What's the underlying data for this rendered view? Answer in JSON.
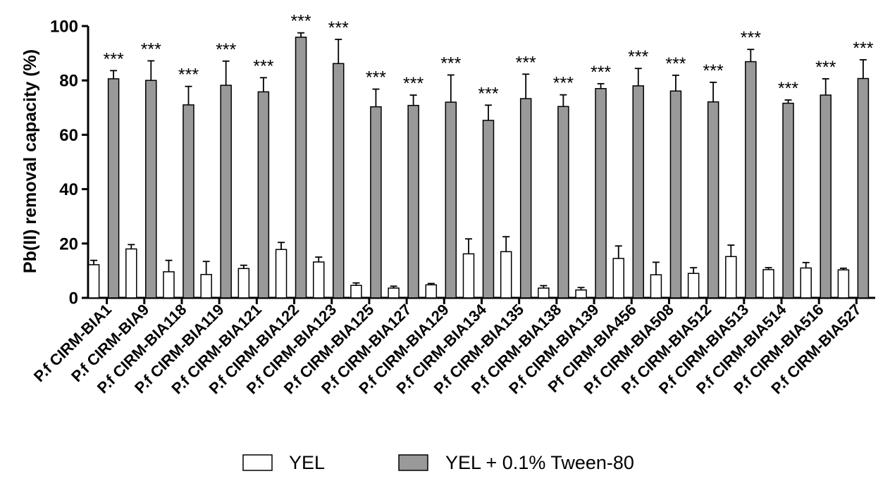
{
  "chart_data": {
    "type": "bar",
    "title": "",
    "xlabel": "",
    "ylabel": "Pb(II) removal capacity (%)",
    "ylim": [
      0,
      100
    ],
    "yticks": [
      "0",
      "20",
      "40",
      "60",
      "80",
      "100"
    ],
    "grid": false,
    "legend_position": "bottom",
    "categories": [
      "P.f CIRM-BIA1",
      "P.f CIRM-BIA9",
      "P.f CIRM-BIA118",
      "P.f CIRM-BIA119",
      "P.f CIRM-BIA121",
      "P.f CIRM-BIA122",
      "P.f CIRM-BIA123",
      "P.f CIRM-BIA125",
      "P.f CIRM-BIA127",
      "P.f CIRM-BIA129",
      "P.f CIRM-BIA134",
      "P.f CIRM-BIA135",
      "P.f CIRM-BIA138",
      "P.f CIRM-BIA139",
      "Pf CIRM-BIA456",
      "P.f CIRM-BIA508",
      "P.f CIRM-BIA512",
      "P.f CIRM-BIA513",
      "P.f CIRM-BIA514",
      "P.f CIRM-BIA516",
      "P.f CIRM-BIA527"
    ],
    "series": [
      {
        "name": "YEL",
        "color": "#ffffff",
        "values": [
          12.2,
          18.0,
          9.6,
          8.6,
          10.8,
          17.8,
          13.2,
          4.6,
          3.6,
          4.8,
          16.2,
          17.0,
          3.6,
          2.9,
          14.5,
          8.5,
          9.0,
          15.2,
          10.4,
          11.0,
          10.3
        ],
        "errors": [
          1.6,
          1.6,
          4.2,
          4.8,
          1.2,
          2.6,
          1.8,
          0.9,
          0.7,
          0.5,
          5.5,
          5.5,
          0.9,
          0.9,
          4.6,
          4.6,
          2.1,
          4.2,
          0.7,
          2.0,
          0.6
        ]
      },
      {
        "name": "YEL + 0.1% Tween-80",
        "color": "#999999",
        "values": [
          80.6,
          80.0,
          71.0,
          78.2,
          75.8,
          95.9,
          86.2,
          70.3,
          70.8,
          72.0,
          65.3,
          73.3,
          70.4,
          77.0,
          78.0,
          76.1,
          72.1,
          86.9,
          71.6,
          74.6,
          80.7
        ],
        "errors": [
          3.0,
          7.2,
          6.8,
          8.9,
          5.2,
          1.6,
          8.9,
          6.5,
          3.8,
          10.0,
          5.6,
          9.0,
          4.3,
          1.8,
          6.4,
          5.8,
          7.2,
          4.5,
          1.2,
          6.0,
          6.9
        ]
      }
    ],
    "annotations": [
      "***",
      "***",
      "***",
      "***",
      "***",
      "***",
      "***",
      "***",
      "***",
      "***",
      "***",
      "***",
      "***",
      "***",
      "***",
      "***",
      "***",
      "***",
      "***",
      "***",
      "***"
    ]
  }
}
